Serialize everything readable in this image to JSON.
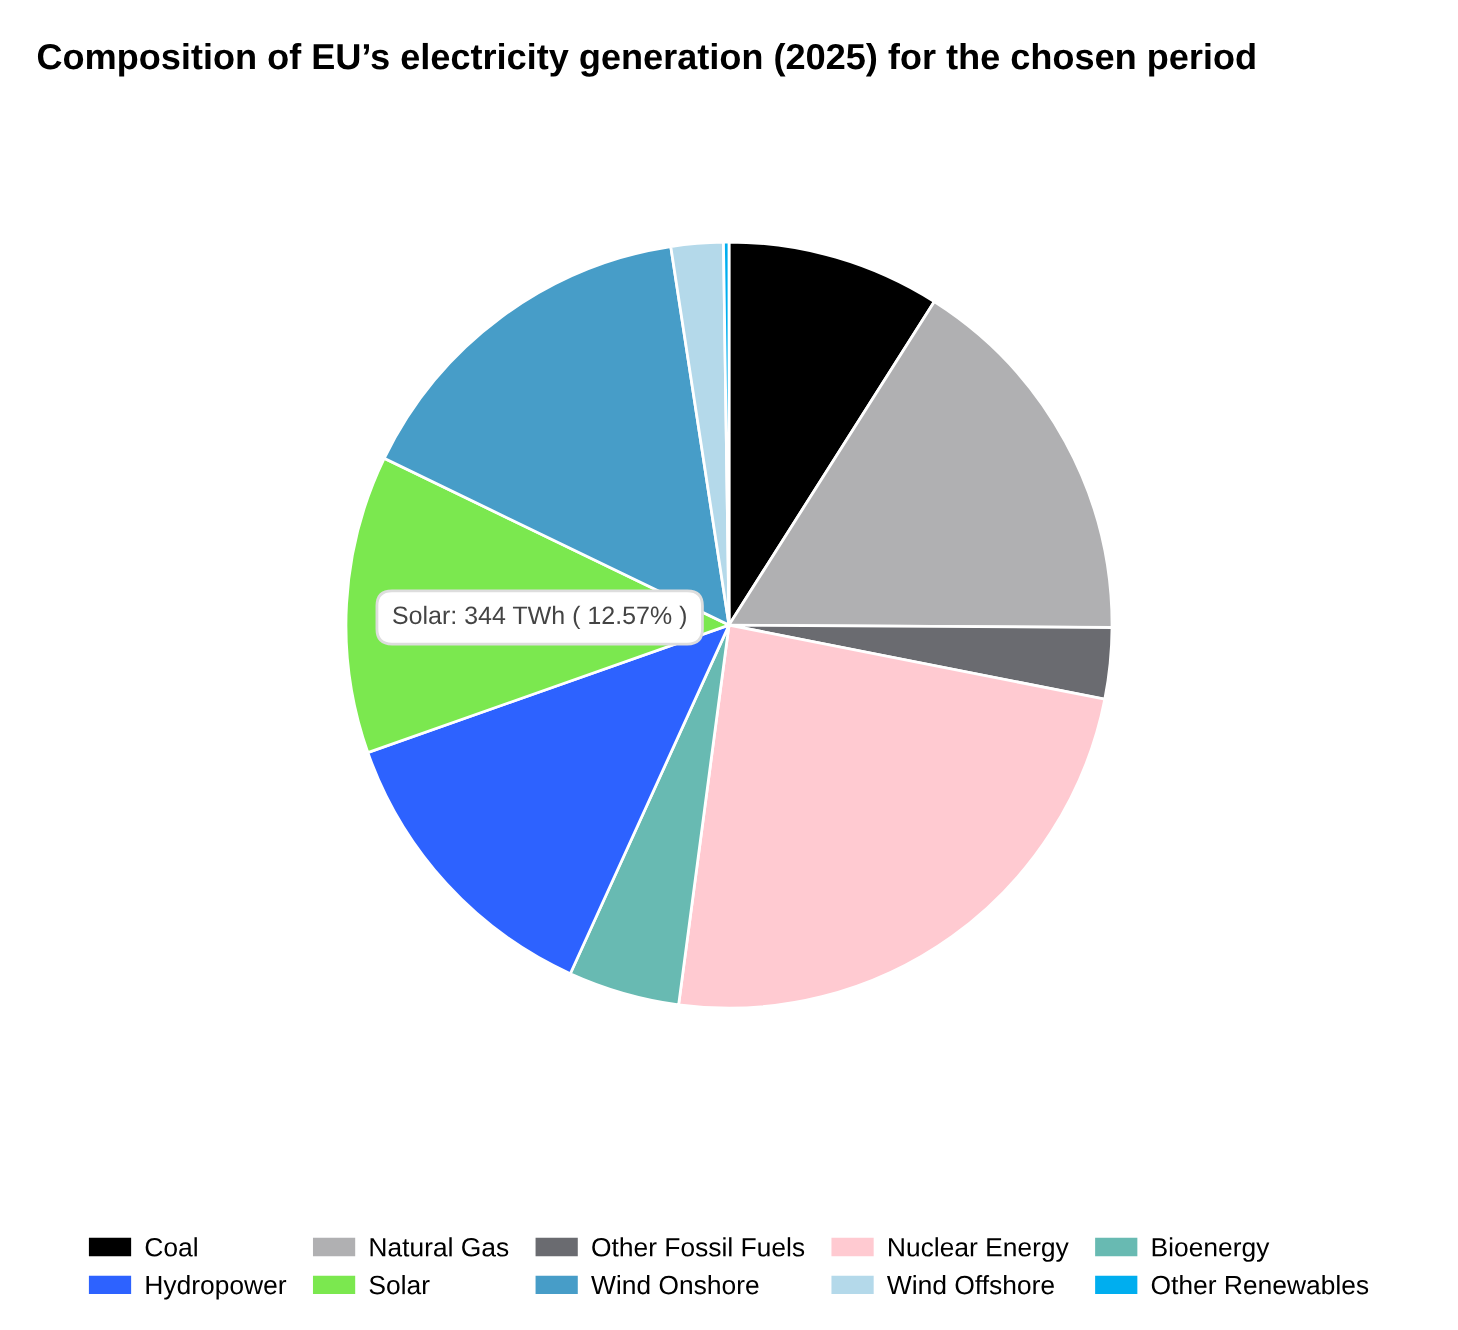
{
  "chart_data": {
    "type": "pie",
    "title": "Composition of EU’s electricity generation (2025) for the chosen period",
    "categories": [
      "Coal",
      "Natural Gas",
      "Other Fossil Fuels",
      "Nuclear Energy",
      "Bioenergy",
      "Hydropower",
      "Solar",
      "Wind Onshore",
      "Wind Offshore",
      "Other Renewables"
    ],
    "values": [
      9.0,
      16.1,
      3.0,
      24.0,
      4.7,
      12.8,
      12.57,
      15.4,
      2.2,
      0.23
    ],
    "colors": [
      "#000000",
      "#b0b0b2",
      "#6a6b70",
      "#ffcad1",
      "#68bab2",
      "#2d62ff",
      "#7be84f",
      "#479dc8",
      "#b4d9ea",
      "#00aeef"
    ],
    "annotations": [
      "Solar: 344 TWh ( 12.57% )"
    ],
    "legend": "bottom"
  }
}
